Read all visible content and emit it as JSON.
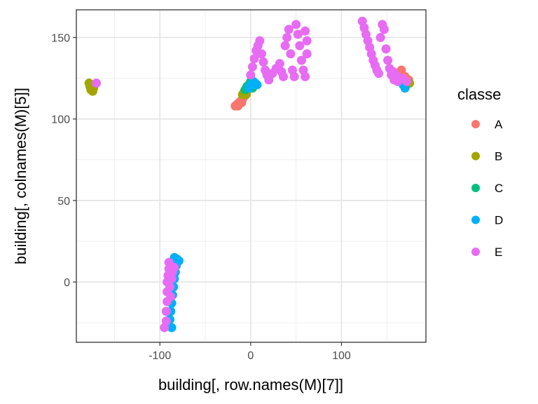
{
  "chart_data": {
    "type": "scatter",
    "xlabel": "building[, row.names(M)[7]]",
    "ylabel": "building[, colnames(M)[5]]",
    "xlim": [
      -192,
      193
    ],
    "ylim": [
      -37,
      167
    ],
    "x_ticks": [
      -100,
      0,
      100
    ],
    "y_ticks": [
      0,
      50,
      100,
      150
    ],
    "x_tick_labels": [
      "-100",
      "0",
      "100"
    ],
    "y_tick_labels": [
      "0",
      "50",
      "100",
      "150"
    ],
    "grid": true,
    "legend": {
      "title": "classe",
      "position": "right",
      "entries": [
        "A",
        "B",
        "C",
        "D",
        "E"
      ]
    },
    "colors": {
      "A": "#F8766D",
      "B": "#A3A500",
      "C": "#00BF7D",
      "D": "#00B0F6",
      "E": "#E76BF3"
    },
    "series": [
      {
        "name": "A",
        "points": [
          {
            "x": -17,
            "y": 108
          },
          {
            "x": -15,
            "y": 109
          },
          {
            "x": -13,
            "y": 110
          },
          {
            "x": -11,
            "y": 111
          },
          {
            "x": -9,
            "y": 112
          },
          {
            "x": -7,
            "y": 114
          },
          {
            "x": -5,
            "y": 116
          },
          {
            "x": -3,
            "y": 118
          },
          {
            "x": -1,
            "y": 119
          },
          {
            "x": -14,
            "y": 108
          },
          {
            "x": -10,
            "y": 110
          },
          {
            "x": 163,
            "y": 128
          },
          {
            "x": 166,
            "y": 130
          },
          {
            "x": 170,
            "y": 126
          },
          {
            "x": 174,
            "y": 124
          },
          {
            "x": 168,
            "y": 122
          }
        ]
      },
      {
        "name": "B",
        "points": [
          {
            "x": -178,
            "y": 122
          },
          {
            "x": -177,
            "y": 120
          },
          {
            "x": -176,
            "y": 118
          },
          {
            "x": -174,
            "y": 117
          },
          {
            "x": -173,
            "y": 119
          },
          {
            "x": -175,
            "y": 121
          },
          {
            "x": -9,
            "y": 115
          },
          {
            "x": -7,
            "y": 117
          },
          {
            "x": -5,
            "y": 115
          },
          {
            "x": 172,
            "y": 121
          },
          {
            "x": 175,
            "y": 122
          },
          {
            "x": 168,
            "y": 124
          },
          {
            "x": 162,
            "y": 125
          }
        ]
      },
      {
        "name": "C",
        "points": [
          {
            "x": -6,
            "y": 118
          },
          {
            "x": -4,
            "y": 120
          },
          {
            "x": -2,
            "y": 121
          },
          {
            "x": 0,
            "y": 123
          },
          {
            "x": 2,
            "y": 119
          },
          {
            "x": 158,
            "y": 128
          },
          {
            "x": 161,
            "y": 126
          },
          {
            "x": 166,
            "y": 124
          }
        ]
      },
      {
        "name": "D",
        "points": [
          {
            "x": -2,
            "y": 119
          },
          {
            "x": 0,
            "y": 121
          },
          {
            "x": 3,
            "y": 123
          },
          {
            "x": 5,
            "y": 122
          },
          {
            "x": 7,
            "y": 121
          },
          {
            "x": -84,
            "y": 15
          },
          {
            "x": -81,
            "y": 14
          },
          {
            "x": -79,
            "y": 13
          },
          {
            "x": -82,
            "y": 10
          },
          {
            "x": -83,
            "y": 6
          },
          {
            "x": -84,
            "y": 2
          },
          {
            "x": -85,
            "y": -3
          },
          {
            "x": -86,
            "y": -8
          },
          {
            "x": -87,
            "y": -13
          },
          {
            "x": -88,
            "y": -18
          },
          {
            "x": -89,
            "y": -23
          },
          {
            "x": -90,
            "y": -27
          },
          {
            "x": -87,
            "y": -28
          },
          {
            "x": 163,
            "y": 124
          },
          {
            "x": 168,
            "y": 121
          },
          {
            "x": 170,
            "y": 119
          }
        ]
      },
      {
        "name": "E",
        "points": [
          {
            "x": -170,
            "y": 122
          },
          {
            "x": -95,
            "y": -28
          },
          {
            "x": -93,
            "y": -24
          },
          {
            "x": -93,
            "y": -18
          },
          {
            "x": -92,
            "y": -12
          },
          {
            "x": -92,
            "y": -6
          },
          {
            "x": -92,
            "y": 0
          },
          {
            "x": -91,
            "y": 4
          },
          {
            "x": -90,
            "y": 8
          },
          {
            "x": -90,
            "y": 12
          },
          {
            "x": -88,
            "y": 10
          },
          {
            "x": -86,
            "y": 6
          },
          {
            "x": -84,
            "y": 9
          },
          {
            "x": -87,
            "y": 2
          },
          {
            "x": -89,
            "y": -3
          },
          {
            "x": -88,
            "y": -9
          },
          {
            "x": 0,
            "y": 127
          },
          {
            "x": 2,
            "y": 132
          },
          {
            "x": 4,
            "y": 137
          },
          {
            "x": 6,
            "y": 142
          },
          {
            "x": 8,
            "y": 145
          },
          {
            "x": 10,
            "y": 148
          },
          {
            "x": 12,
            "y": 140
          },
          {
            "x": 14,
            "y": 135
          },
          {
            "x": 16,
            "y": 130
          },
          {
            "x": 18,
            "y": 127
          },
          {
            "x": 20,
            "y": 124
          },
          {
            "x": 24,
            "y": 128
          },
          {
            "x": 28,
            "y": 131
          },
          {
            "x": 32,
            "y": 134
          },
          {
            "x": 34,
            "y": 129
          },
          {
            "x": 36,
            "y": 126
          },
          {
            "x": 38,
            "y": 145
          },
          {
            "x": 40,
            "y": 150
          },
          {
            "x": 42,
            "y": 155
          },
          {
            "x": 44,
            "y": 140
          },
          {
            "x": 46,
            "y": 130
          },
          {
            "x": 48,
            "y": 126
          },
          {
            "x": 50,
            "y": 158
          },
          {
            "x": 52,
            "y": 152
          },
          {
            "x": 54,
            "y": 145
          },
          {
            "x": 56,
            "y": 136
          },
          {
            "x": 58,
            "y": 130
          },
          {
            "x": 60,
            "y": 126
          },
          {
            "x": 60,
            "y": 154
          },
          {
            "x": 62,
            "y": 148
          },
          {
            "x": 62,
            "y": 140
          },
          {
            "x": 123,
            "y": 160
          },
          {
            "x": 125,
            "y": 156
          },
          {
            "x": 127,
            "y": 152
          },
          {
            "x": 129,
            "y": 148
          },
          {
            "x": 131,
            "y": 144
          },
          {
            "x": 133,
            "y": 140
          },
          {
            "x": 135,
            "y": 136
          },
          {
            "x": 137,
            "y": 133
          },
          {
            "x": 139,
            "y": 130
          },
          {
            "x": 141,
            "y": 128
          },
          {
            "x": 143,
            "y": 150
          },
          {
            "x": 145,
            "y": 158
          },
          {
            "x": 147,
            "y": 155
          },
          {
            "x": 149,
            "y": 143
          },
          {
            "x": 151,
            "y": 136
          },
          {
            "x": 153,
            "y": 131
          },
          {
            "x": 155,
            "y": 127
          },
          {
            "x": 158,
            "y": 124
          },
          {
            "x": 162,
            "y": 123
          },
          {
            "x": 167,
            "y": 125
          },
          {
            "x": 172,
            "y": 123
          },
          {
            "x": 157,
            "y": 129
          },
          {
            "x": 160,
            "y": 127
          }
        ]
      }
    ]
  }
}
